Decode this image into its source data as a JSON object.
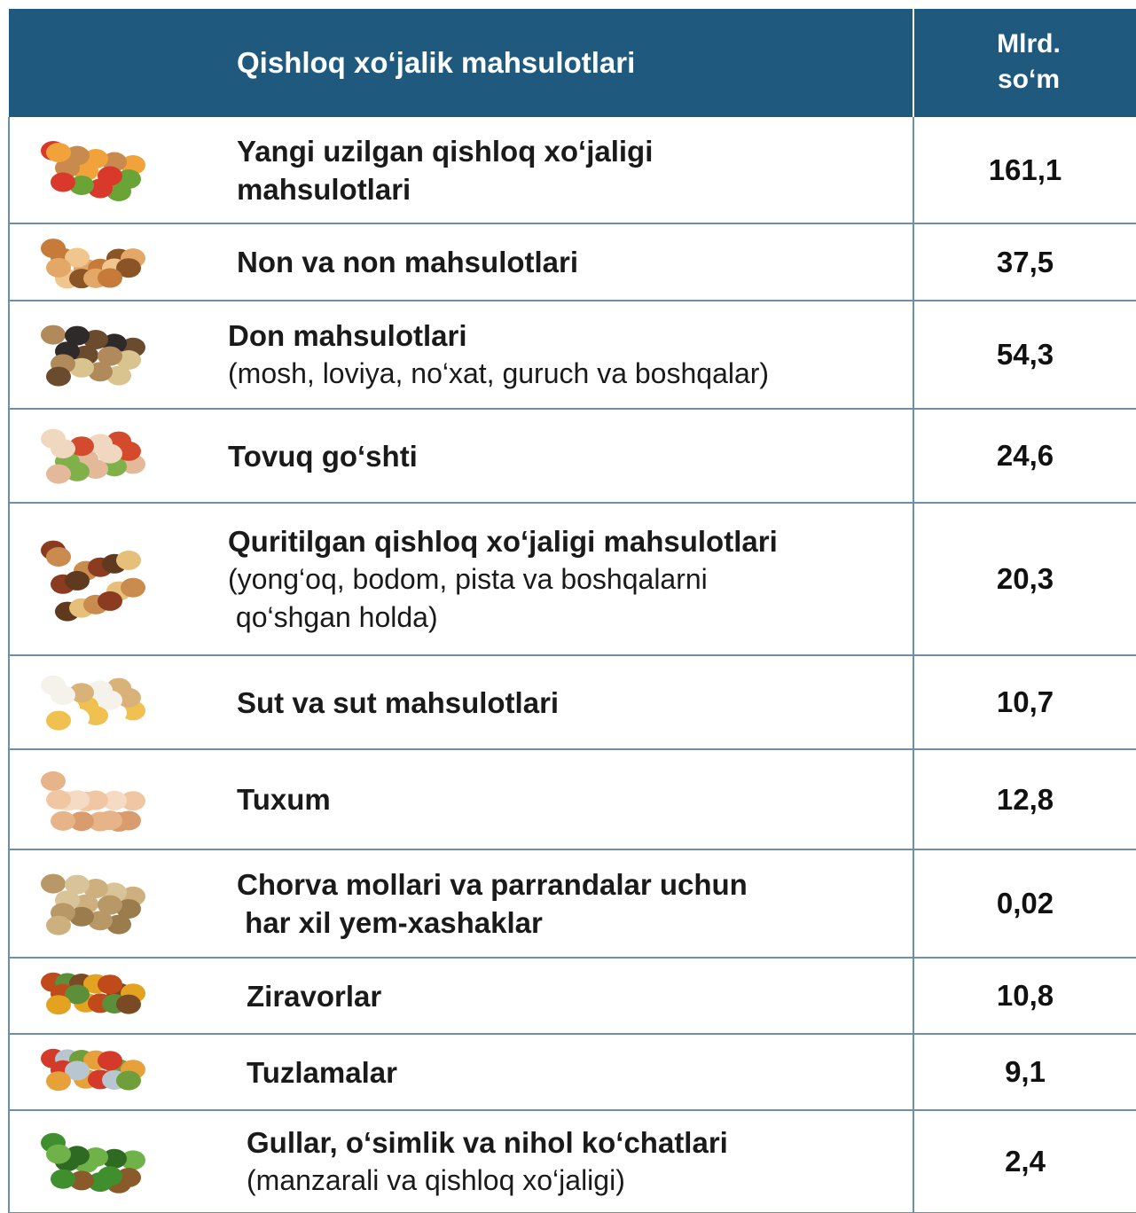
{
  "table": {
    "header": [
      "Qishloq xo‘jalik mahsulotlari",
      [
        "Mlrd.",
        "so‘m"
      ]
    ],
    "rows": [
      {
        "title": [
          "Yangi uzilgan qishloq xo‘jaligi",
          "mahsulotlari"
        ],
        "value": "161,1"
      },
      {
        "title": [
          "Non va non mahsulotlari"
        ],
        "value": "37,5"
      },
      {
        "title": [
          "Don mahsulotlari"
        ],
        "subtitle": [
          "(mosh, loviya, no‘xat, guruch va boshqalar)"
        ],
        "value": "54,3"
      },
      {
        "title": [
          "Tovuq go‘shti"
        ],
        "value": "24,6"
      },
      {
        "title": [
          "Quritilgan qishloq xo‘jaligi mahsulotlari"
        ],
        "subtitle": [
          "(yong‘oq, bodom, pista va boshqalarni",
          " qo‘shgan holda)"
        ],
        "value": "20,3"
      },
      {
        "title": [
          "Sut va sut mahsulotlari"
        ],
        "value": "10,7"
      },
      {
        "title": [
          "Tuxum"
        ],
        "value": "12,8"
      },
      {
        "title": [
          "Chorva mollari va parrandalar uchun",
          " har xil yem-xashaklar"
        ],
        "value": "0,02"
      },
      {
        "title": [
          "Ziravorlar"
        ],
        "value": "10,8"
      },
      {
        "title": [
          "Tuzlamalar"
        ],
        "value": "9,1"
      },
      {
        "title": [
          "Gullar, o‘simlik va nihol ko‘chatlari"
        ],
        "subtitle": [
          "(manzarali va qishloq xo‘jaligi)"
        ],
        "value": "2,4"
      }
    ]
  }
}
